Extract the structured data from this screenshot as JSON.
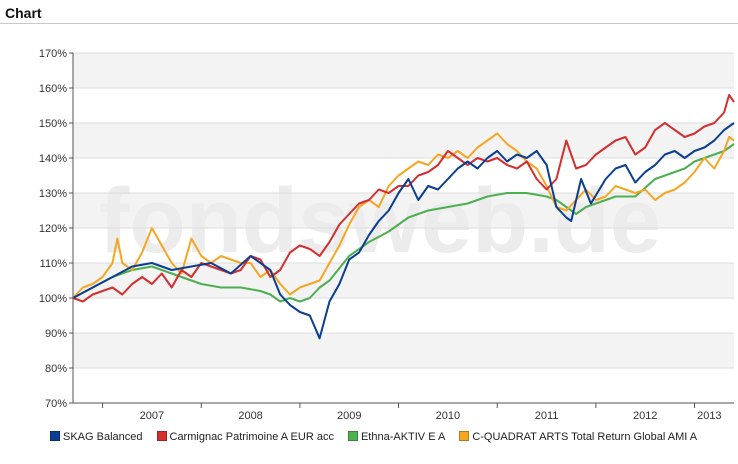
{
  "panel": {
    "title": "Chart"
  },
  "watermark": "fondsweb.de",
  "chart_data": {
    "type": "line",
    "y_ticks": [
      "70%",
      "80%",
      "90%",
      "100%",
      "110%",
      "120%",
      "130%",
      "140%",
      "150%",
      "160%",
      "170%"
    ],
    "ylim": [
      70,
      170
    ],
    "x_ticks": [
      "2007",
      "2008",
      "2009",
      "2010",
      "2011",
      "2012",
      "2013"
    ],
    "xlim": [
      2006.7,
      2013.4
    ],
    "grid": "horizontal, alternating shaded bands",
    "legend_position": "bottom",
    "series": [
      {
        "name": "SKAG Balanced",
        "color": "#0b3d91",
        "points": [
          [
            2006.7,
            100
          ],
          [
            2006.9,
            103
          ],
          [
            2007.1,
            106
          ],
          [
            2007.3,
            109
          ],
          [
            2007.5,
            110
          ],
          [
            2007.7,
            108
          ],
          [
            2007.9,
            109
          ],
          [
            2008.1,
            110
          ],
          [
            2008.3,
            107
          ],
          [
            2008.5,
            112
          ],
          [
            2008.7,
            108
          ],
          [
            2008.8,
            101
          ],
          [
            2008.9,
            98
          ],
          [
            2009.0,
            96
          ],
          [
            2009.1,
            95
          ],
          [
            2009.2,
            88.5
          ],
          [
            2009.3,
            99
          ],
          [
            2009.4,
            104
          ],
          [
            2009.5,
            111
          ],
          [
            2009.6,
            113
          ],
          [
            2009.7,
            118
          ],
          [
            2009.8,
            122
          ],
          [
            2009.9,
            125
          ],
          [
            2010.0,
            130
          ],
          [
            2010.1,
            134
          ],
          [
            2010.2,
            128
          ],
          [
            2010.3,
            132
          ],
          [
            2010.4,
            131
          ],
          [
            2010.5,
            134
          ],
          [
            2010.6,
            137
          ],
          [
            2010.7,
            139
          ],
          [
            2010.8,
            137
          ],
          [
            2010.9,
            140
          ],
          [
            2011.0,
            142
          ],
          [
            2011.1,
            139
          ],
          [
            2011.2,
            141
          ],
          [
            2011.3,
            140
          ],
          [
            2011.4,
            142
          ],
          [
            2011.5,
            138
          ],
          [
            2011.6,
            126
          ],
          [
            2011.7,
            123
          ],
          [
            2011.75,
            122
          ],
          [
            2011.85,
            134
          ],
          [
            2011.95,
            127
          ],
          [
            2012.1,
            134
          ],
          [
            2012.2,
            137
          ],
          [
            2012.3,
            138
          ],
          [
            2012.4,
            133
          ],
          [
            2012.5,
            136
          ],
          [
            2012.6,
            138
          ],
          [
            2012.7,
            141
          ],
          [
            2012.8,
            142
          ],
          [
            2012.9,
            140
          ],
          [
            2013.0,
            142
          ],
          [
            2013.1,
            143
          ],
          [
            2013.2,
            145
          ],
          [
            2013.3,
            148
          ],
          [
            2013.4,
            150
          ]
        ]
      },
      {
        "name": "Carmignac Patrimoine A EUR acc",
        "color": "#d32f2f",
        "points": [
          [
            2006.7,
            100
          ],
          [
            2006.8,
            99
          ],
          [
            2006.9,
            101
          ],
          [
            2007.0,
            102
          ],
          [
            2007.1,
            103
          ],
          [
            2007.2,
            101
          ],
          [
            2007.3,
            104
          ],
          [
            2007.4,
            106
          ],
          [
            2007.5,
            104
          ],
          [
            2007.6,
            107
          ],
          [
            2007.7,
            103
          ],
          [
            2007.8,
            108
          ],
          [
            2007.9,
            106
          ],
          [
            2008.0,
            110
          ],
          [
            2008.1,
            109
          ],
          [
            2008.2,
            108
          ],
          [
            2008.3,
            107
          ],
          [
            2008.4,
            108
          ],
          [
            2008.5,
            112
          ],
          [
            2008.6,
            111
          ],
          [
            2008.7,
            106
          ],
          [
            2008.8,
            108
          ],
          [
            2008.9,
            113
          ],
          [
            2009.0,
            115
          ],
          [
            2009.1,
            114
          ],
          [
            2009.2,
            112
          ],
          [
            2009.3,
            116
          ],
          [
            2009.4,
            121
          ],
          [
            2009.5,
            124
          ],
          [
            2009.6,
            127
          ],
          [
            2009.7,
            128
          ],
          [
            2009.8,
            131
          ],
          [
            2009.9,
            130
          ],
          [
            2010.0,
            132
          ],
          [
            2010.1,
            132
          ],
          [
            2010.2,
            135
          ],
          [
            2010.3,
            136
          ],
          [
            2010.4,
            138
          ],
          [
            2010.5,
            142
          ],
          [
            2010.6,
            140
          ],
          [
            2010.7,
            138
          ],
          [
            2010.8,
            140
          ],
          [
            2010.9,
            139
          ],
          [
            2011.0,
            140
          ],
          [
            2011.1,
            138
          ],
          [
            2011.2,
            137
          ],
          [
            2011.3,
            139
          ],
          [
            2011.4,
            134
          ],
          [
            2011.5,
            131
          ],
          [
            2011.6,
            134
          ],
          [
            2011.7,
            145
          ],
          [
            2011.8,
            137
          ],
          [
            2011.9,
            138
          ],
          [
            2012.0,
            141
          ],
          [
            2012.1,
            143
          ],
          [
            2012.2,
            145
          ],
          [
            2012.3,
            146
          ],
          [
            2012.4,
            141
          ],
          [
            2012.5,
            143
          ],
          [
            2012.6,
            148
          ],
          [
            2012.7,
            150
          ],
          [
            2012.8,
            148
          ],
          [
            2012.9,
            146
          ],
          [
            2013.0,
            147
          ],
          [
            2013.1,
            149
          ],
          [
            2013.2,
            150
          ],
          [
            2013.3,
            153
          ],
          [
            2013.35,
            158
          ],
          [
            2013.4,
            156
          ]
        ]
      },
      {
        "name": "Ethna-AKTIV E A",
        "color": "#4caf50",
        "points": [
          [
            2006.7,
            100
          ],
          [
            2006.9,
            103
          ],
          [
            2007.1,
            106
          ],
          [
            2007.3,
            108
          ],
          [
            2007.5,
            109
          ],
          [
            2007.6,
            108
          ],
          [
            2007.7,
            107
          ],
          [
            2007.9,
            105
          ],
          [
            2008.0,
            104
          ],
          [
            2008.2,
            103
          ],
          [
            2008.4,
            103
          ],
          [
            2008.6,
            102
          ],
          [
            2008.7,
            101
          ],
          [
            2008.8,
            99
          ],
          [
            2008.9,
            100
          ],
          [
            2009.0,
            99
          ],
          [
            2009.1,
            100
          ],
          [
            2009.2,
            103
          ],
          [
            2009.3,
            105
          ],
          [
            2009.5,
            112
          ],
          [
            2009.7,
            116
          ],
          [
            2009.9,
            119
          ],
          [
            2010.1,
            123
          ],
          [
            2010.3,
            125
          ],
          [
            2010.5,
            126
          ],
          [
            2010.7,
            127
          ],
          [
            2010.9,
            129
          ],
          [
            2011.1,
            130
          ],
          [
            2011.3,
            130
          ],
          [
            2011.5,
            129
          ],
          [
            2011.6,
            128
          ],
          [
            2011.7,
            126
          ],
          [
            2011.8,
            124
          ],
          [
            2011.9,
            126
          ],
          [
            2012.0,
            127
          ],
          [
            2012.2,
            129
          ],
          [
            2012.4,
            129
          ],
          [
            2012.6,
            134
          ],
          [
            2012.8,
            136
          ],
          [
            2012.9,
            137
          ],
          [
            2013.0,
            139
          ],
          [
            2013.1,
            140
          ],
          [
            2013.2,
            141
          ],
          [
            2013.3,
            142
          ],
          [
            2013.4,
            144
          ]
        ]
      },
      {
        "name": "C-QUADRAT ARTS Total Return Global AMI A",
        "color": "#f5a623",
        "points": [
          [
            2006.7,
            100
          ],
          [
            2006.8,
            103
          ],
          [
            2006.9,
            104
          ],
          [
            2007.0,
            106
          ],
          [
            2007.1,
            110
          ],
          [
            2007.15,
            117
          ],
          [
            2007.2,
            110
          ],
          [
            2007.3,
            108
          ],
          [
            2007.4,
            113
          ],
          [
            2007.5,
            120
          ],
          [
            2007.6,
            115
          ],
          [
            2007.7,
            110
          ],
          [
            2007.8,
            107
          ],
          [
            2007.9,
            117
          ],
          [
            2008.0,
            112
          ],
          [
            2008.1,
            110
          ],
          [
            2008.2,
            112
          ],
          [
            2008.3,
            111
          ],
          [
            2008.4,
            110
          ],
          [
            2008.5,
            110
          ],
          [
            2008.6,
            106
          ],
          [
            2008.7,
            108
          ],
          [
            2008.8,
            104
          ],
          [
            2008.9,
            101
          ],
          [
            2009.0,
            103
          ],
          [
            2009.1,
            104
          ],
          [
            2009.2,
            105
          ],
          [
            2009.3,
            110
          ],
          [
            2009.4,
            115
          ],
          [
            2009.5,
            121
          ],
          [
            2009.6,
            126
          ],
          [
            2009.7,
            128
          ],
          [
            2009.8,
            126
          ],
          [
            2009.9,
            132
          ],
          [
            2010.0,
            135
          ],
          [
            2010.1,
            137
          ],
          [
            2010.2,
            139
          ],
          [
            2010.3,
            138
          ],
          [
            2010.4,
            141
          ],
          [
            2010.5,
            140
          ],
          [
            2010.6,
            142
          ],
          [
            2010.7,
            140
          ],
          [
            2010.8,
            143
          ],
          [
            2010.9,
            145
          ],
          [
            2011.0,
            147
          ],
          [
            2011.1,
            144
          ],
          [
            2011.2,
            142
          ],
          [
            2011.3,
            139
          ],
          [
            2011.4,
            137
          ],
          [
            2011.5,
            132
          ],
          [
            2011.6,
            126
          ],
          [
            2011.7,
            125
          ],
          [
            2011.8,
            128
          ],
          [
            2011.9,
            131
          ],
          [
            2012.0,
            128
          ],
          [
            2012.1,
            129
          ],
          [
            2012.2,
            132
          ],
          [
            2012.3,
            131
          ],
          [
            2012.4,
            130
          ],
          [
            2012.5,
            131
          ],
          [
            2012.6,
            128
          ],
          [
            2012.7,
            130
          ],
          [
            2012.8,
            131
          ],
          [
            2012.9,
            133
          ],
          [
            2013.0,
            136
          ],
          [
            2013.1,
            140
          ],
          [
            2013.2,
            137
          ],
          [
            2013.3,
            142
          ],
          [
            2013.35,
            146
          ],
          [
            2013.4,
            145
          ]
        ]
      }
    ]
  }
}
